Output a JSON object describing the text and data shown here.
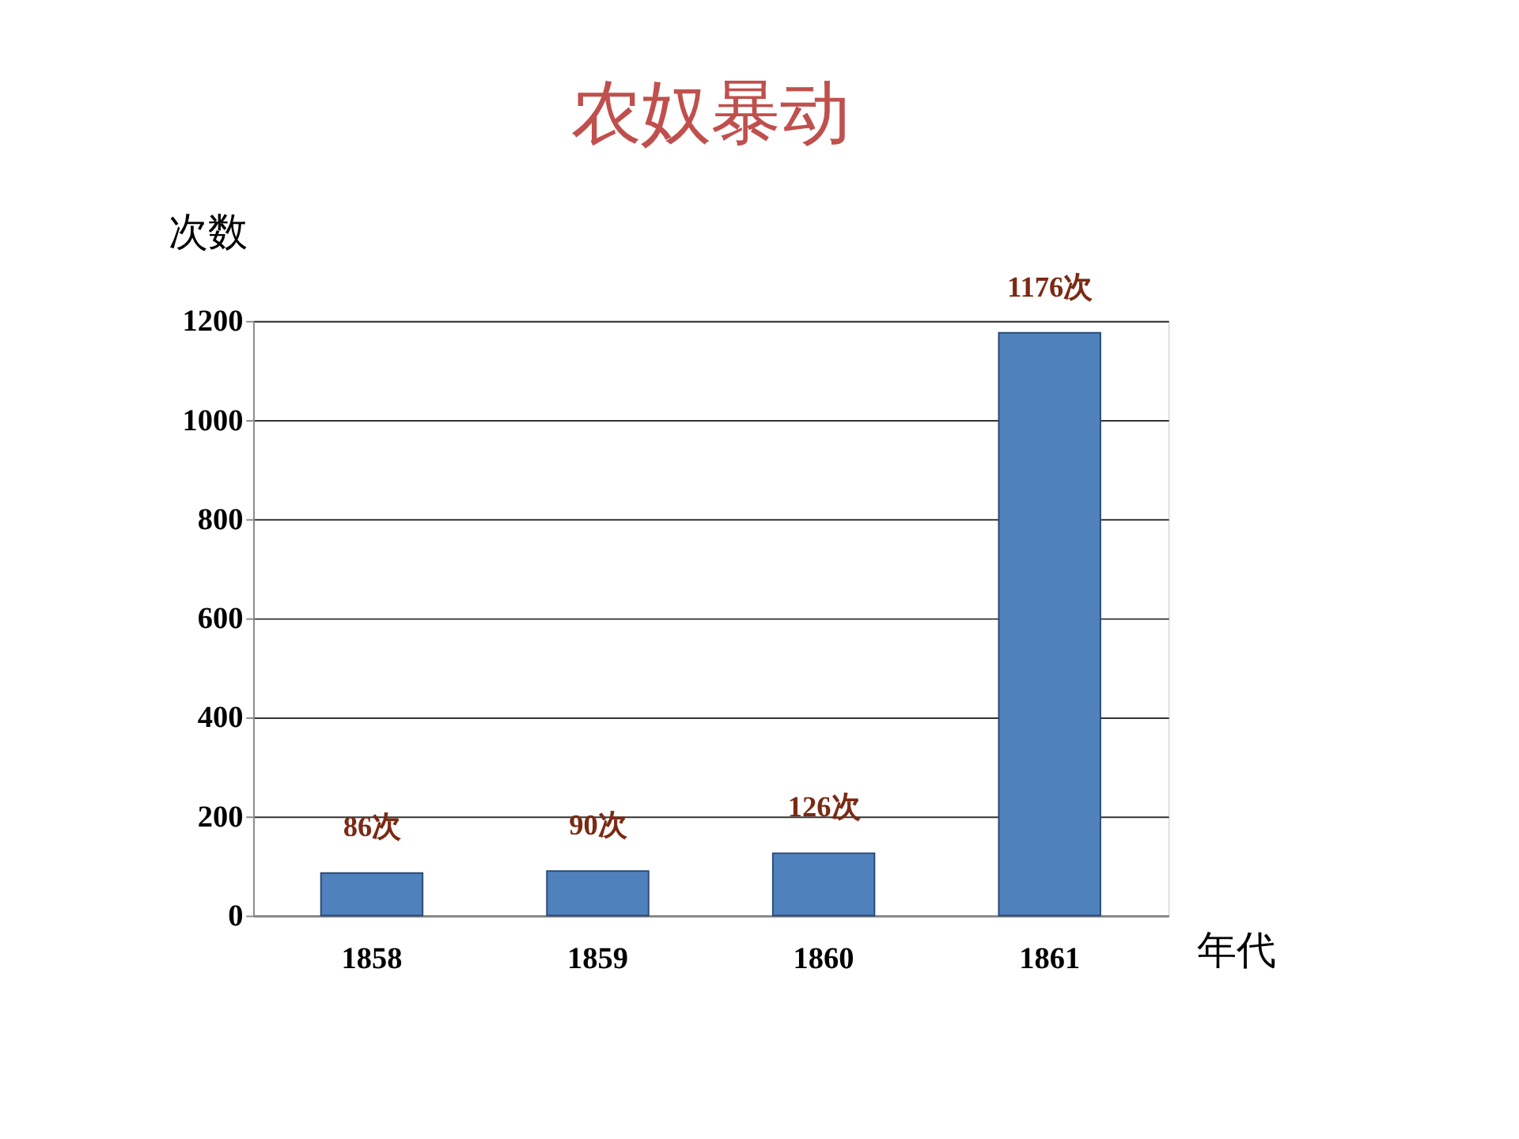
{
  "chart_data": {
    "type": "bar",
    "title": "农奴暴动",
    "xlabel": "年代",
    "ylabel": "次数",
    "categories": [
      "1858",
      "1859",
      "1860",
      "1861"
    ],
    "values": [
      86,
      90,
      126,
      1176
    ],
    "value_labels": [
      "86次",
      "90次",
      "126次",
      "1176次"
    ],
    "color": "#4f81bd",
    "ylim": [
      0,
      1200
    ],
    "yticks": [
      0,
      200,
      400,
      600,
      800,
      1000,
      1200
    ],
    "grid": "y"
  }
}
